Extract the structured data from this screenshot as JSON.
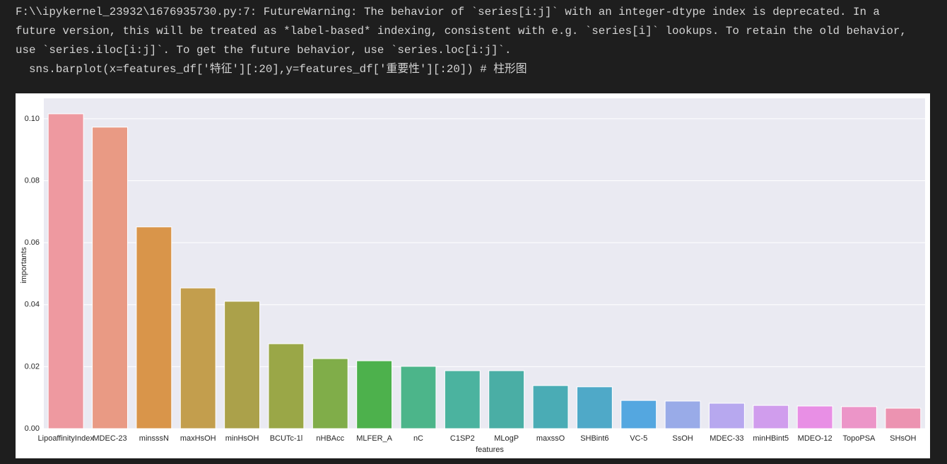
{
  "warning": {
    "lines": [
      "F:\\\\ipykernel_23932\\1676935730.py:7: FutureWarning: The behavior of `series[i:j]` with an integer-dtype index is deprecated. In a",
      "future version, this will be treated as *label-based* indexing, consistent with e.g. `series[i]` lookups. To retain the old behavior,",
      "use `series.iloc[i:j]`. To get the future behavior, use `series.loc[i:j]`.",
      "  sns.barplot(x=features_df['特征'][:20],y=features_df['重要性'][:20]) # 柱形图"
    ]
  },
  "chart_data": {
    "type": "bar",
    "xlabel": "features",
    "ylabel": "importants",
    "categories": [
      "LipoaffinityIndex",
      "MDEC-23",
      "minsssN",
      "maxHsOH",
      "minHsOH",
      "BCUTc-1l",
      "nHBAcc",
      "MLFER_A",
      "nC",
      "C1SP2",
      "MLogP",
      "maxssO",
      "SHBint6",
      "VC-5",
      "SsOH",
      "MDEC-33",
      "minHBint5",
      "MDEO-12",
      "TopoPSA",
      "SHsOH"
    ],
    "values": [
      0.1016,
      0.0973,
      0.0651,
      0.0454,
      0.0411,
      0.0274,
      0.0226,
      0.0219,
      0.0201,
      0.0187,
      0.0187,
      0.0139,
      0.0135,
      0.0091,
      0.0089,
      0.0082,
      0.0075,
      0.0073,
      0.0071,
      0.0066
    ],
    "colors": [
      "#ee99a0",
      "#e99a84",
      "#d9954a",
      "#c39e4d",
      "#aba14a",
      "#9aa747",
      "#80ad49",
      "#4db14c",
      "#4cb58a",
      "#4bb39f",
      "#4aaea5",
      "#4aacb5",
      "#4fa9c8",
      "#54a7e0",
      "#99abe8",
      "#b7a8ef",
      "#d09ded",
      "#e88fe5",
      "#ec95c8",
      "#ec93b1"
    ],
    "ylim": [
      0,
      0.1066
    ],
    "yticks": [
      {
        "value": 0,
        "label": "0.00"
      },
      0.02,
      0.04,
      0.06,
      0.08,
      {
        "value": 0.1,
        "label": "0.10"
      }
    ],
    "grid": true
  }
}
